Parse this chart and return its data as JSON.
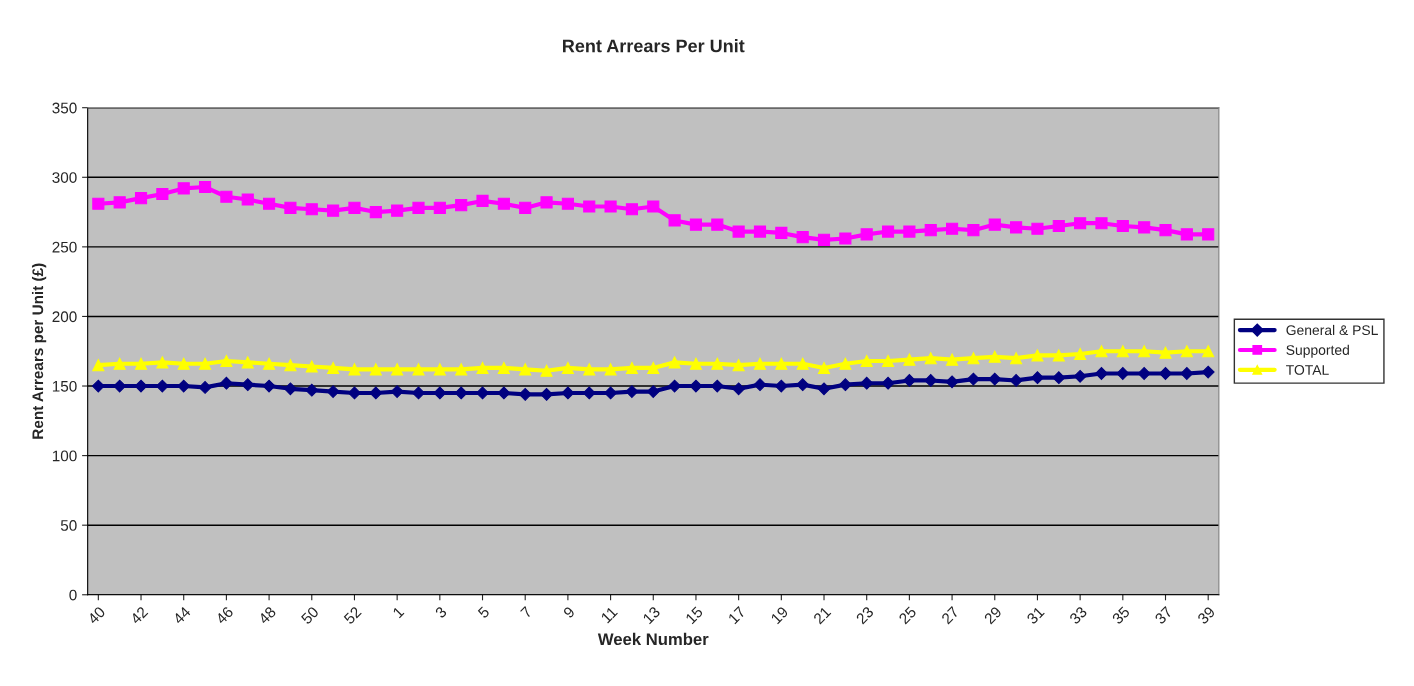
{
  "chart_data": {
    "type": "line",
    "title": "Rent Arrears Per Unit",
    "xlabel": "Week Number",
    "ylabel": "Rent Arrears per Unit (£)",
    "categories": [
      "40",
      null,
      "42",
      null,
      "44",
      null,
      "46",
      null,
      "48",
      null,
      "50",
      null,
      "52",
      null,
      "1",
      null,
      "3",
      null,
      "5",
      null,
      "7",
      null,
      "9",
      null,
      "11",
      null,
      "13",
      null,
      "15",
      null,
      "17",
      null,
      "19",
      null,
      "21",
      null,
      "23",
      null,
      "25",
      null,
      "27",
      null,
      "29",
      null,
      "31",
      null,
      "33",
      null,
      "35",
      null,
      "37",
      null,
      "39"
    ],
    "series": [
      {
        "name": "General & PSL",
        "color": "#000080",
        "marker": "diamond",
        "values": [
          150,
          150,
          150,
          150,
          150,
          149,
          152,
          151,
          150,
          148,
          147,
          146,
          145,
          145,
          146,
          145,
          145,
          145,
          145,
          145,
          144,
          144,
          145,
          145,
          145,
          146,
          146,
          150,
          150,
          150,
          148,
          151,
          150,
          151,
          148,
          151,
          152,
          152,
          154,
          154,
          153,
          155,
          155,
          154,
          156,
          156,
          157,
          159,
          159,
          159,
          159,
          159,
          160
        ]
      },
      {
        "name": "Supported",
        "color": "#ff00ff",
        "marker": "square",
        "values": [
          281,
          282,
          285,
          288,
          292,
          293,
          286,
          284,
          281,
          278,
          277,
          276,
          278,
          275,
          276,
          278,
          278,
          280,
          283,
          281,
          278,
          282,
          281,
          279,
          279,
          277,
          279,
          269,
          266,
          266,
          261,
          261,
          260,
          257,
          255,
          256,
          259,
          261,
          261,
          262,
          263,
          262,
          266,
          264,
          263,
          265,
          267,
          267,
          265,
          264,
          262,
          259,
          259
        ]
      },
      {
        "name": "TOTAL",
        "color": "#ffff00",
        "marker": "triangle",
        "values": [
          165,
          166,
          166,
          167,
          166,
          166,
          168,
          167,
          166,
          165,
          164,
          163,
          162,
          162,
          162,
          162,
          162,
          162,
          163,
          163,
          162,
          161,
          163,
          162,
          162,
          163,
          163,
          167,
          166,
          166,
          165,
          166,
          166,
          166,
          163,
          166,
          168,
          168,
          169,
          170,
          169,
          170,
          171,
          170,
          172,
          172,
          173,
          175,
          175,
          175,
          174,
          175,
          175
        ]
      }
    ],
    "ylim": [
      0,
      350
    ],
    "yticks": [
      0,
      50,
      100,
      150,
      200,
      250,
      300,
      350
    ],
    "grid": "y",
    "legend": "right"
  }
}
